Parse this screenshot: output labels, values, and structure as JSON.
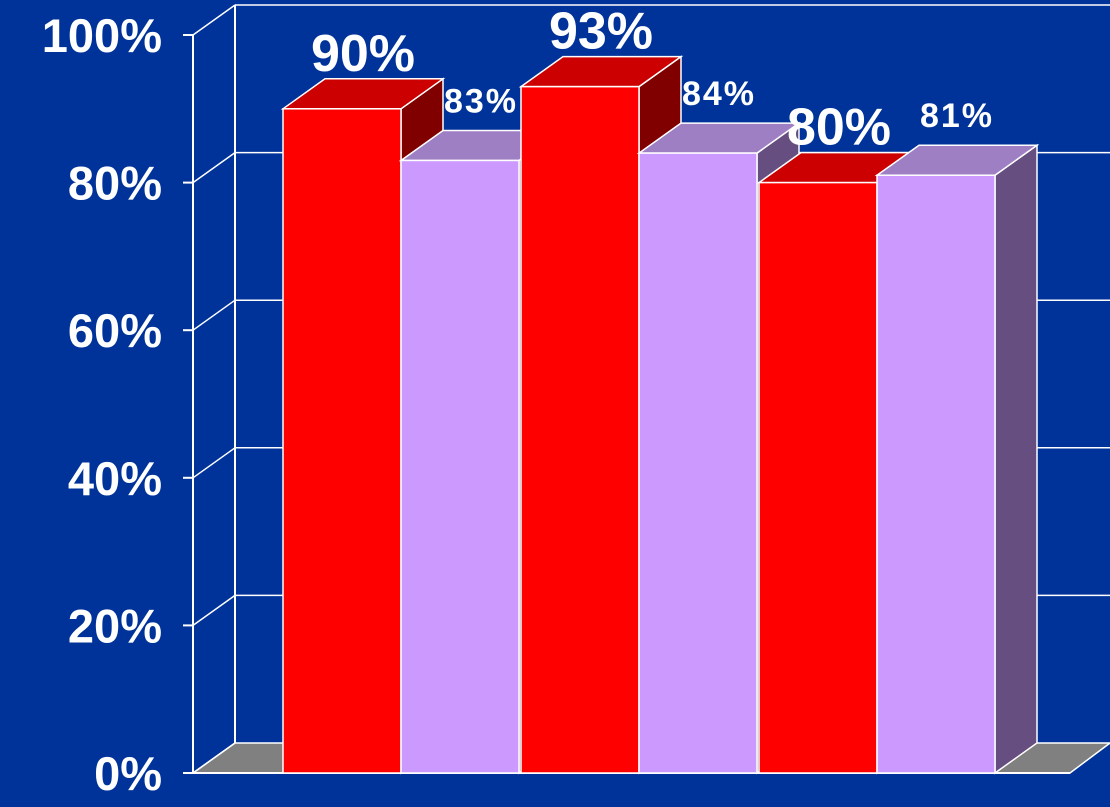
{
  "colors": {
    "background": "#003399",
    "grid": "#ffffff",
    "floor": "#808080",
    "series_red_front": "#ff0000",
    "series_red_top": "#cc0000",
    "series_red_side": "#800000",
    "series_lilac_front": "#cc99ff",
    "series_lilac_top": "#9f7fc4",
    "series_lilac_side": "#664f80"
  },
  "chart_data": {
    "type": "bar",
    "style": "3d-clustered",
    "categories": [
      "",
      "",
      ""
    ],
    "series": [
      {
        "color": "#ff0000",
        "values": [
          90,
          93,
          80
        ],
        "labels": [
          "90%",
          "93%",
          "80%"
        ]
      },
      {
        "color": "#cc99ff",
        "values": [
          83,
          84,
          81
        ],
        "labels": [
          "83%",
          "84%",
          "81%"
        ]
      }
    ],
    "yticks": [
      "0%",
      "20%",
      "40%",
      "60%",
      "80%",
      "100%"
    ],
    "ylim": [
      0,
      100
    ],
    "grid": true,
    "legend": "none"
  }
}
